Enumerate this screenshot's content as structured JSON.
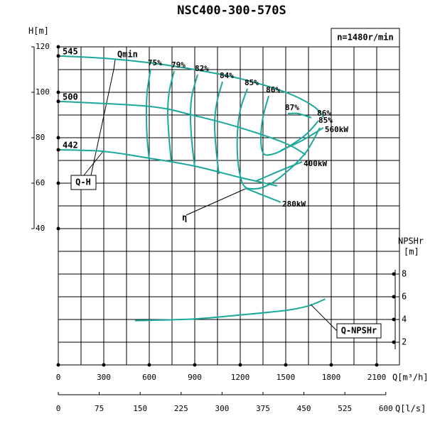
{
  "chart_data": {
    "type": "line",
    "title": "NSC400-300-570S",
    "speed": "n=1480r/min",
    "xlabel": "Q[m³/h]",
    "x2label": "Q[l/s]",
    "ylabel": "H[m]",
    "y2label": "NPSHr",
    "y2unit": "[m]",
    "xlim": [
      0,
      2250
    ],
    "xticks": [
      0,
      300,
      600,
      900,
      1200,
      1500,
      1800,
      2100
    ],
    "xgrid": [
      0,
      150,
      300,
      450,
      600,
      750,
      900,
      1050,
      1200,
      1350,
      1500,
      1650,
      1800,
      1950,
      2100,
      2250
    ],
    "x2lim": [
      0,
      625
    ],
    "x2ticks": [
      0,
      75,
      150,
      225,
      300,
      375,
      450,
      525,
      600
    ],
    "ylim": [
      -20,
      120
    ],
    "yticks": [
      40,
      60,
      80,
      100,
      120
    ],
    "ygrid": [
      -20,
      -10,
      0,
      10,
      20,
      30,
      40,
      50,
      60,
      70,
      80,
      90,
      100,
      110,
      120
    ],
    "y2lim": [
      0,
      28
    ],
    "y2ticks": [
      2,
      4,
      6,
      8
    ],
    "color": "#1aa89a",
    "annotations": {
      "qmin": "Qmin",
      "qh": "Q-H",
      "eta": "η"
    },
    "series": [
      {
        "name": "545",
        "x": [
          0,
          300,
          600,
          900,
          1200,
          1500,
          1680,
          1750
        ],
        "values": [
          116,
          115,
          113,
          110,
          106,
          100,
          94,
          89
        ]
      },
      {
        "name": "500",
        "x": [
          0,
          600,
          900,
          1200,
          1500,
          1631
        ],
        "values": [
          96,
          93.8,
          89.7,
          84.4,
          77.5,
          72.5
        ]
      },
      {
        "name": "442",
        "x": [
          0,
          300,
          600,
          900,
          1200,
          1444
        ],
        "values": [
          74.7,
          74,
          71,
          67.5,
          62.5,
          58.8
        ]
      },
      {
        "name": "Q-NPSHr",
        "axis": "y2",
        "x": [
          506,
          900,
          1200,
          1500,
          1650,
          1760
        ],
        "values": [
          3.9,
          4.05,
          4.4,
          4.8,
          5.2,
          5.8
        ]
      }
    ],
    "efficiency": [
      {
        "label": "75%",
        "x": [
          609,
          586,
          581,
          586,
          600
        ],
        "values": [
          110.3,
          100,
          90.6,
          79.7,
          70.3
        ]
      },
      {
        "label": "79%",
        "x": [
          764,
          731,
          722,
          731,
          745
        ],
        "values": [
          109.4,
          100,
          90.6,
          79.7,
          69.4
        ]
      },
      {
        "label": "82%",
        "x": [
          919,
          881,
          872,
          881,
          900
        ],
        "values": [
          107.8,
          98.4,
          89,
          78.1,
          67.2
        ]
      },
      {
        "label": "84%",
        "x": [
          1083,
          1045,
          1031,
          1041,
          1059
        ],
        "values": [
          104.7,
          95.3,
          85.9,
          75,
          64
        ]
      },
      {
        "label": "85%",
        "x": [
          1247,
          1200,
          1181,
          1186,
          1219,
          1280,
          1373,
          1491,
          1631,
          1725
        ],
        "values": [
          101.6,
          92.2,
          81.3,
          68.8,
          59.4,
          57.5,
          58.8,
          64.1,
          73.4,
          84.4
        ]
      },
      {
        "label": "86%",
        "x": [
          1388,
          1350,
          1336,
          1350,
          1397,
          1491,
          1631,
          1716
        ],
        "values": [
          98.4,
          89.1,
          79.7,
          73.4,
          72.5,
          75,
          81.3,
          87.5
        ]
      },
      {
        "label": "87%",
        "x": [
          1514,
          1584,
          1669
        ],
        "values": [
          90.6,
          90.6,
          88.8
        ]
      }
    ],
    "power": [
      {
        "label": "560kW",
        "x": [
          1467,
          1608,
          1748
        ],
        "values": [
          74.4,
          78.8,
          84.4
        ]
      },
      {
        "label": "400kW",
        "x": [
          1303,
          1467,
          1608
        ],
        "values": [
          60.9,
          65.6,
          69.4
        ]
      },
      {
        "label": "280kW",
        "x": [
          1233,
          1350,
          1467
        ],
        "values": [
          57.8,
          54.7,
          51.6
        ]
      }
    ]
  }
}
